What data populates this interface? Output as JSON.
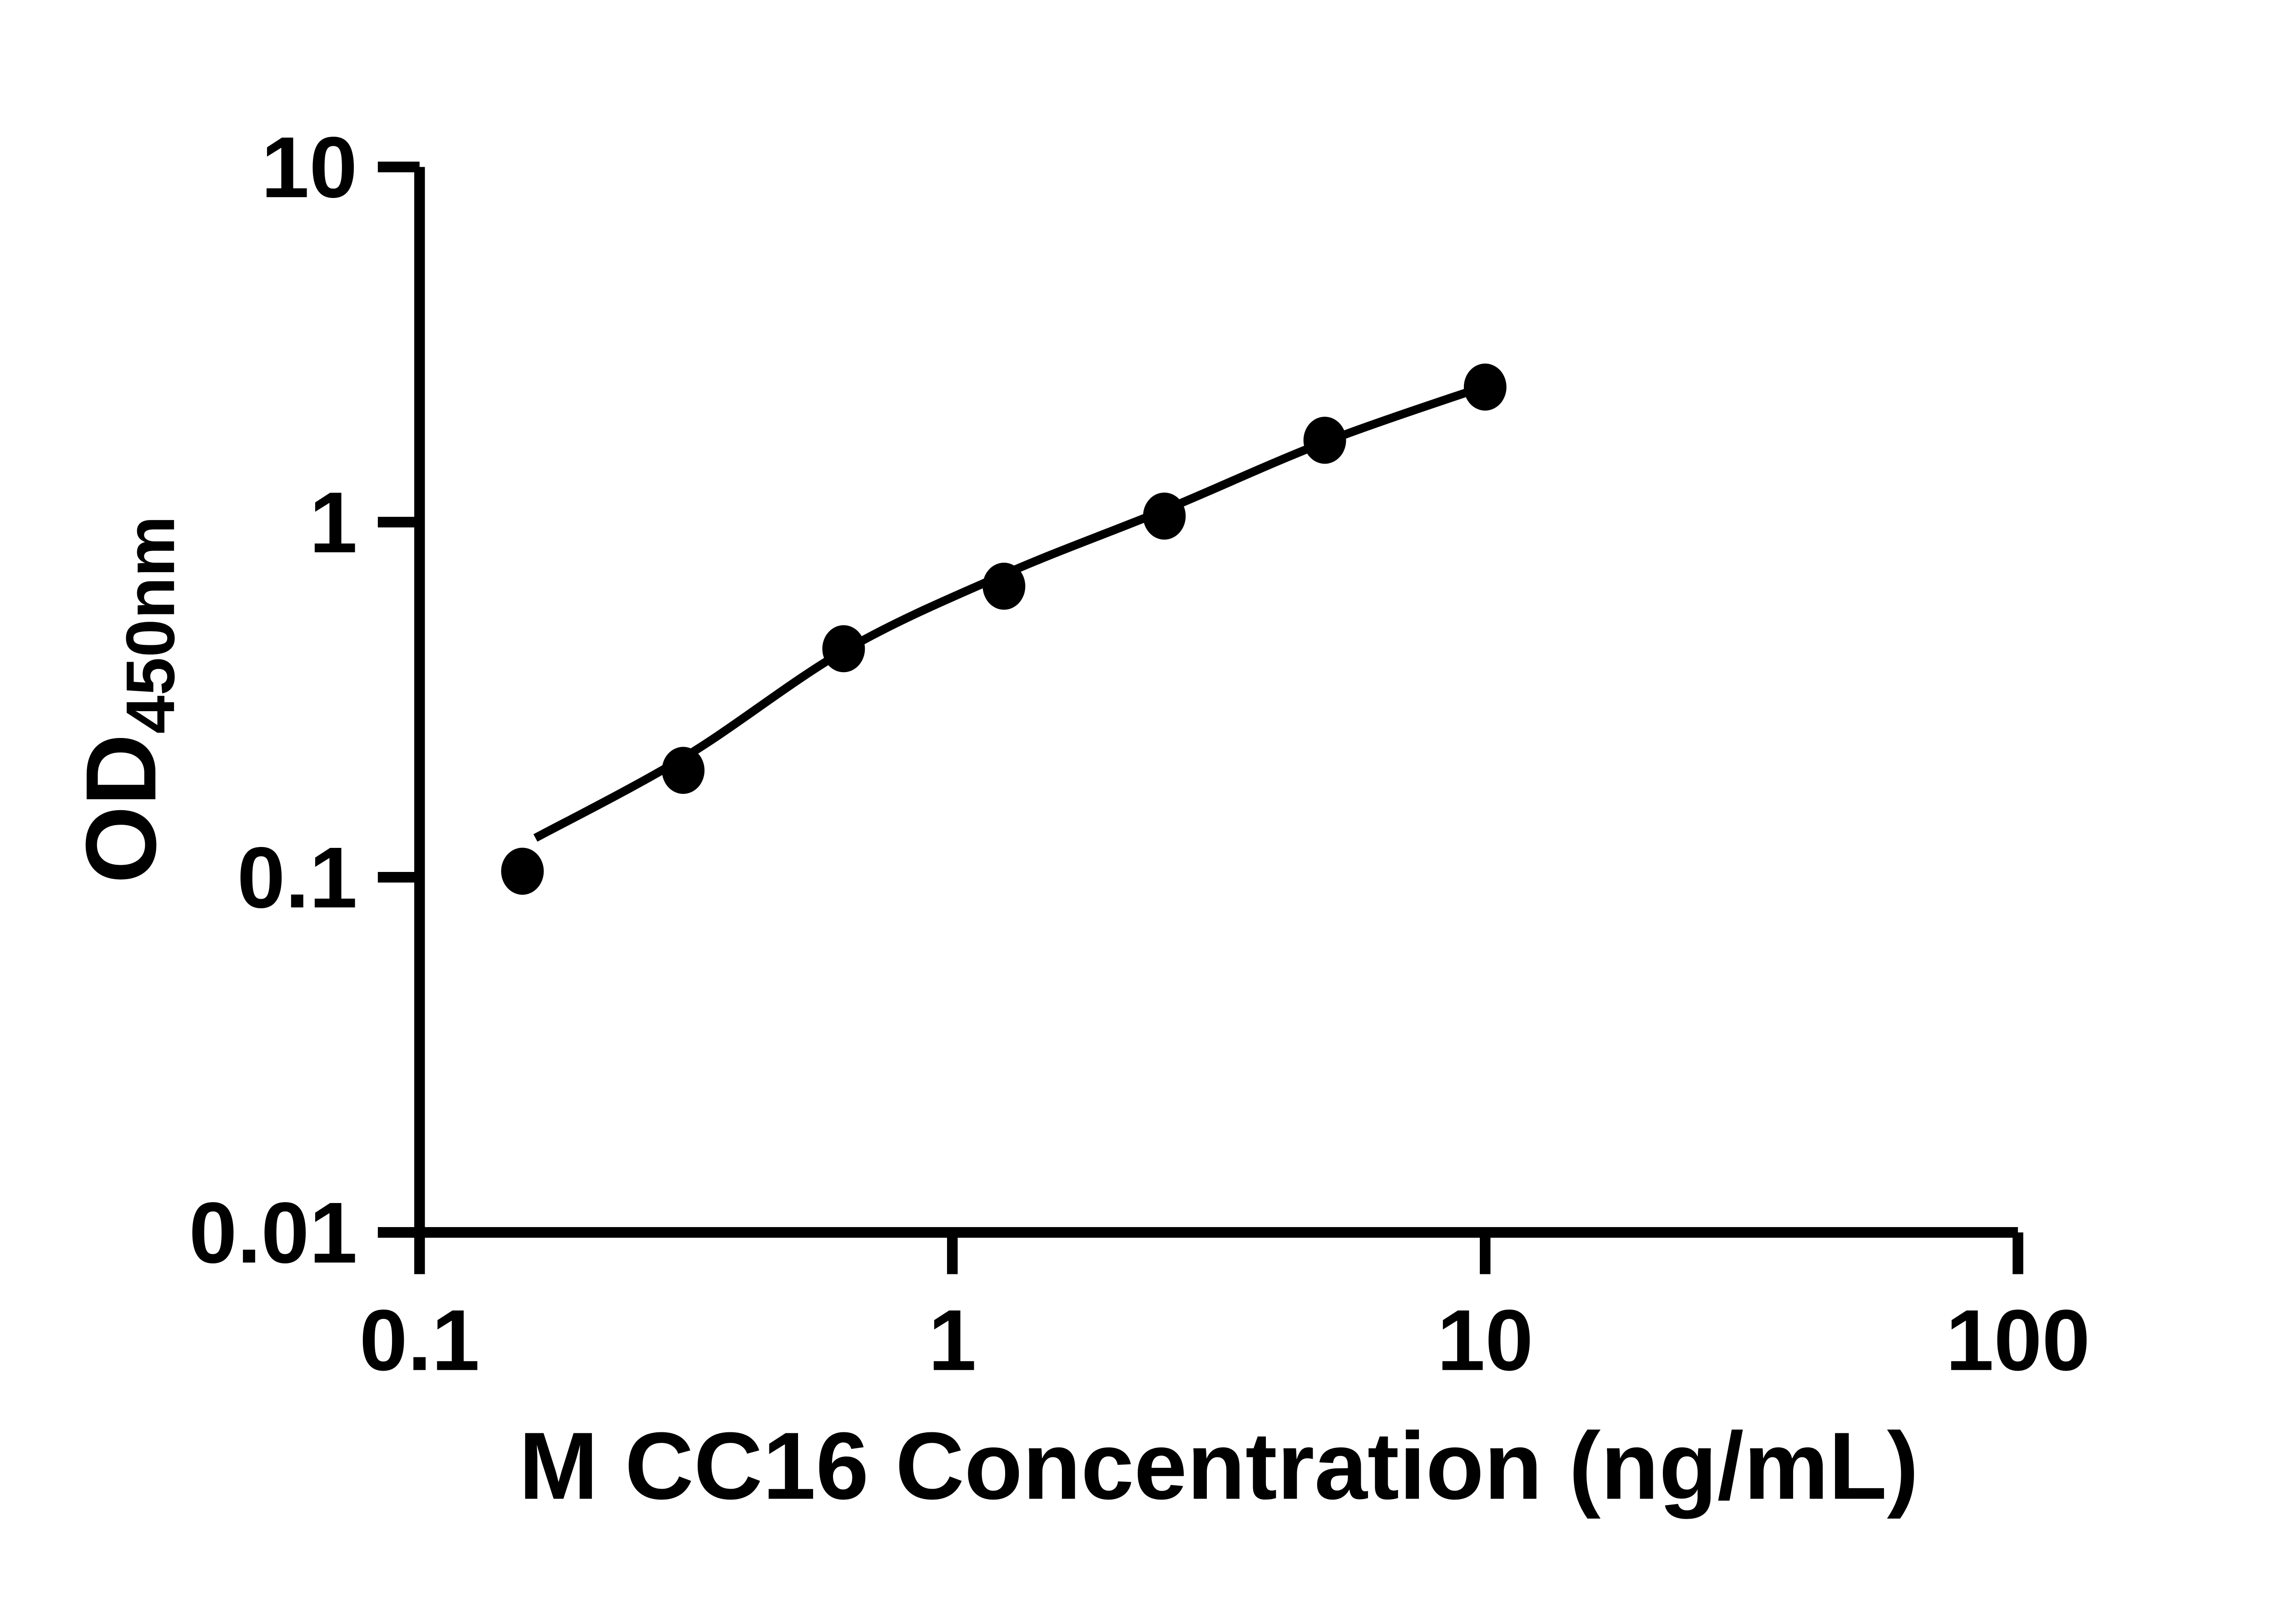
{
  "figure": {
    "background_color": "#ffffff",
    "ink_color": "#000000"
  },
  "chart_data": {
    "type": "scatter",
    "title": "",
    "xlabel": "M CC16 Concentration (ng/mL)",
    "ylabel_main": "OD",
    "ylabel_subscript": "450nm",
    "x_scale": "log",
    "y_scale": "log",
    "xlim": [
      0.1,
      100
    ],
    "ylim": [
      0.01,
      10
    ],
    "grid": false,
    "legend_position": "none",
    "x_ticks": {
      "values": [
        0.1,
        1,
        10,
        100
      ],
      "labels": [
        "0.1",
        "1",
        "10",
        "100"
      ]
    },
    "y_ticks": {
      "values": [
        0.01,
        0.1,
        1,
        10
      ],
      "labels": [
        "0.01",
        "0.1",
        "1",
        "10"
      ]
    },
    "series": [
      {
        "name": "standard-data-points",
        "kind": "scatter",
        "marker": "filled-circle",
        "color": "#000000",
        "x": [
          0.156,
          0.3125,
          0.625,
          1.25,
          2.5,
          5,
          10
        ],
        "y": [
          0.104,
          0.2,
          0.44,
          0.66,
          1.04,
          1.7,
          2.4
        ]
      },
      {
        "name": "fitted-standard-curve",
        "kind": "line",
        "color": "#000000",
        "x": [
          0.165,
          0.316,
          0.631,
          1.26,
          2.51,
          5.0,
          10.05
        ],
        "y": [
          0.129,
          0.219,
          0.437,
          0.716,
          1.084,
          1.68,
          2.42
        ]
      }
    ]
  },
  "layout_note": "single standard-curve plot, black on white, no gridlines, no legend"
}
